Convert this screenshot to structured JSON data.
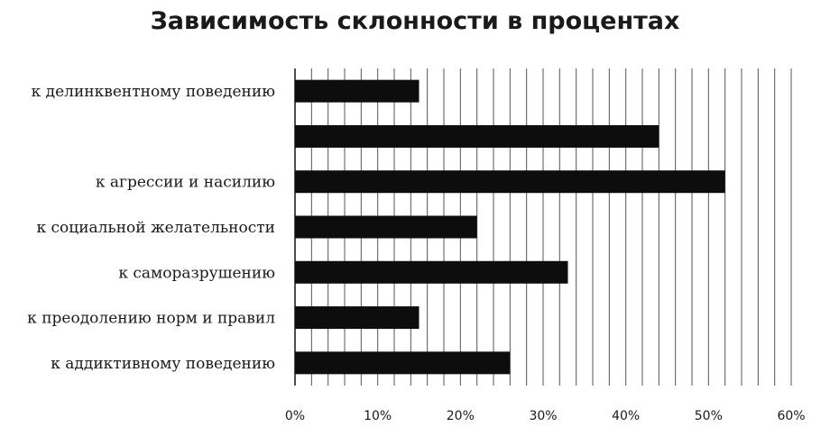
{
  "chart_data": {
    "type": "bar",
    "orientation": "horizontal",
    "title": "Зависимость склонности в процентах",
    "categories": [
      "к делинквентному поведению",
      "",
      "к агрессии и насилию",
      "к социальной желательности",
      "к саморазрушению",
      "к преодолению норм и правил",
      "к аддиктивному поведению"
    ],
    "values": [
      15,
      44,
      52,
      22,
      33,
      15,
      26
    ],
    "xlim": [
      0,
      60
    ],
    "x_ticks": [
      "0%",
      "10%",
      "20%",
      "30%",
      "40%",
      "50%",
      "60%"
    ],
    "grid": "vertical",
    "bar_color": "#0d0d0d"
  }
}
